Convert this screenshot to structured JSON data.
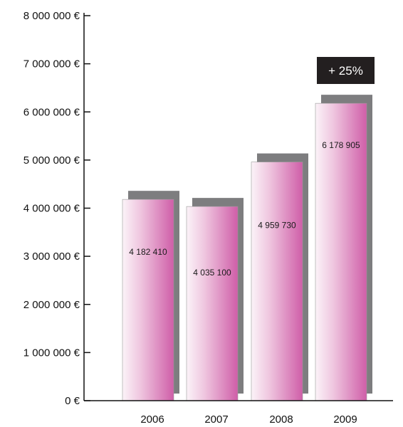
{
  "chart_data": {
    "type": "bar",
    "categories": [
      "2006",
      "2007",
      "2008",
      "2009"
    ],
    "values": [
      4182410,
      4035100,
      4959730,
      6178905
    ],
    "value_labels": [
      "4 182 410",
      "4 035 100",
      "4 959 730",
      "6 178 905"
    ],
    "title": "",
    "xlabel": "",
    "ylabel": "",
    "ylim": [
      0,
      8000000
    ],
    "y_ticks": [
      0,
      1000000,
      2000000,
      3000000,
      4000000,
      5000000,
      6000000,
      7000000,
      8000000
    ],
    "y_tick_labels": [
      "0 €",
      "1 000 000 €",
      "2 000 000 €",
      "3 000 000 €",
      "4 000 000 €",
      "5 000 000 €",
      "6 000 000 €",
      "7 000 000 €",
      "8 000 000 €"
    ],
    "grid": false,
    "legend": "none",
    "annotation": {
      "text": "+ 25%",
      "category": "2009"
    },
    "colors": {
      "bar_gradient_light": "#fbf3f8",
      "bar_gradient_dark": "#cf5ea8",
      "bar_shadow": "#7d7d7f",
      "bar_edge": "#9a9a9a",
      "axis": "#111111",
      "callout_bg": "#231f20",
      "callout_text": "#ffffff"
    }
  }
}
